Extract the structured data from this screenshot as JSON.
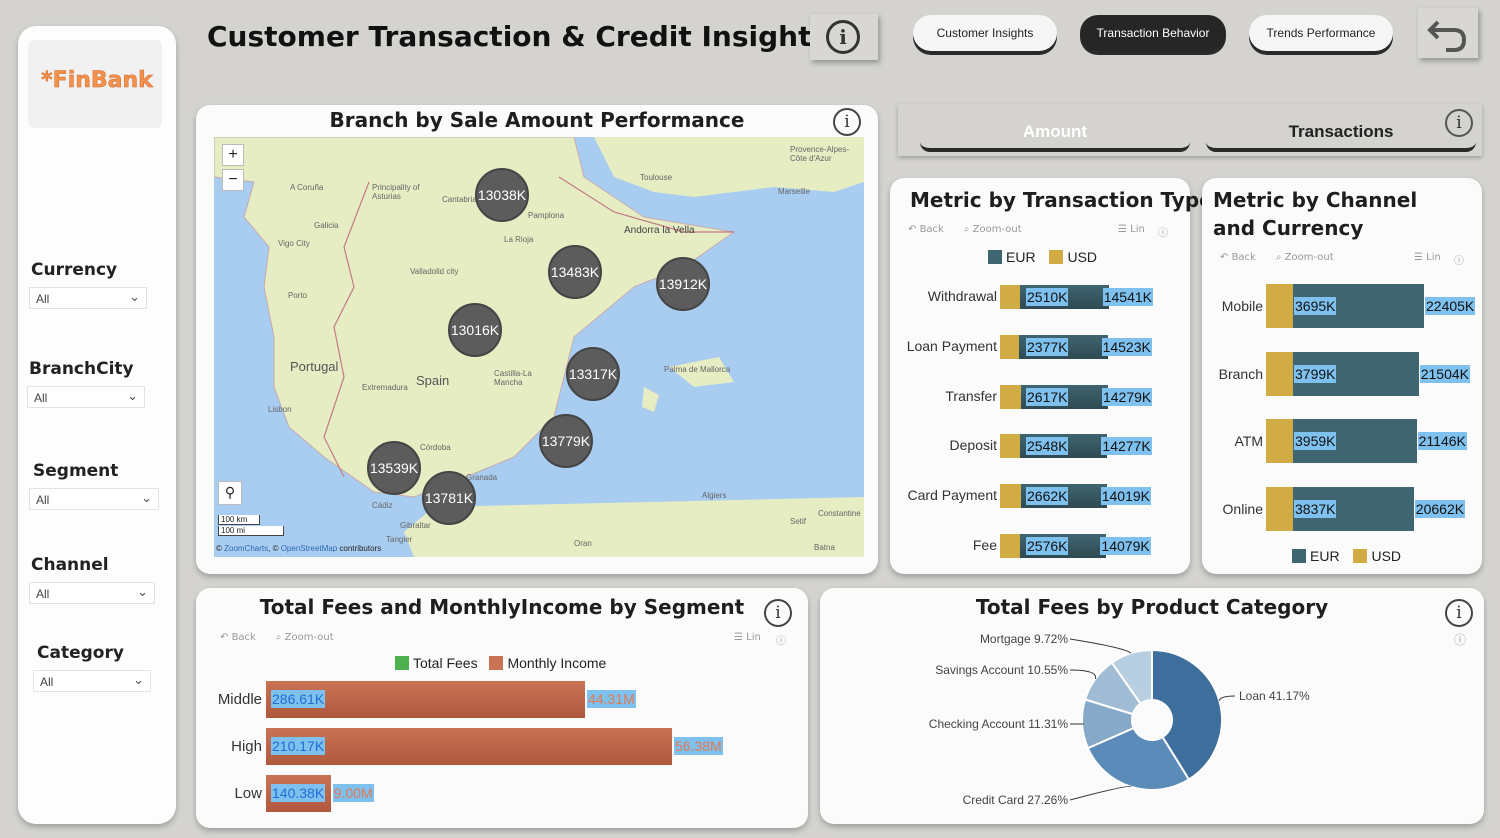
{
  "header": {
    "title": "Customer Transaction & Credit Insights",
    "nav": [
      "Customer Insights",
      "Transaction Behavior",
      "Trends Performance"
    ]
  },
  "sidebar": {
    "logo": "*FinBank",
    "filters": [
      {
        "label": "Currency",
        "value": "All"
      },
      {
        "label": "BranchCity",
        "value": "All"
      },
      {
        "label": "Segment",
        "value": "All"
      },
      {
        "label": "Channel",
        "value": "All"
      },
      {
        "label": "Category",
        "value": "All"
      }
    ]
  },
  "toolbar": {
    "back": "Back",
    "zoom_out": "Zoom-out",
    "lin": "Lin"
  },
  "map_card": {
    "title": "Branch by Sale Amount Performance",
    "zoom_in": "+",
    "zoom_out": "−",
    "scale_km": "100 km",
    "scale_mi": "100 mi",
    "attribution_prefix": "© ",
    "attribution_zc": "ZoomCharts",
    "attribution_mid": ", © ",
    "attribution_osm": "OpenStreetMap",
    "attribution_suffix": " contributors",
    "places": [
      "Provence-Alpes-Côte d'Azur",
      "Toulouse",
      "Marseille",
      "A Coruña",
      "Principality of Asturias",
      "Cantabria",
      "Pamplona",
      "La Rioja",
      "Andorra la Vella",
      "Galicia",
      "Vigo City",
      "Valladolid city",
      "Porto",
      "Portugal",
      "Spain",
      "Castilla-La Mancha",
      "Extremadura",
      "Lisbon",
      "Palma de Mallorca",
      "Córdoba",
      "Granada",
      "Algiers",
      "Cádiz",
      "Gibraltar",
      "Tangier",
      "Oran",
      "Setif",
      "Constantine",
      "Batna"
    ],
    "clusters": [
      "13038K",
      "13483K",
      "13912K",
      "13016K",
      "13317K",
      "13779K",
      "13539K",
      "13781K"
    ]
  },
  "toggle": {
    "amount": "Amount",
    "transactions": "Transactions"
  },
  "colors": {
    "eur": "#3f6570",
    "usd": "#d1ab44",
    "fees": "#4caf50",
    "income": "#c87356",
    "label_bg": "#7ec0ee",
    "pie": [
      "#3e6e9c",
      "#5b8bb9",
      "#86a9c9",
      "#a1bdd6",
      "#b8cfe2"
    ]
  },
  "chart_data": [
    {
      "type": "bar",
      "title": "Metric by Transaction Type",
      "categories": [
        "Withdrawal",
        "Loan Payment",
        "Transfer",
        "Deposit",
        "Card Payment",
        "Fee"
      ],
      "series": [
        {
          "name": "EUR",
          "values": [
            14541,
            14523,
            14279,
            14277,
            14019,
            14079
          ],
          "labels": [
            "14541K",
            "14523K",
            "14279K",
            "14277K",
            "14019K",
            "14079K"
          ]
        },
        {
          "name": "USD",
          "values": [
            2510,
            2377,
            2617,
            2548,
            2662,
            2576
          ],
          "labels": [
            "2510K",
            "2377K",
            "2617K",
            "2548K",
            "2662K",
            "2576K"
          ]
        }
      ]
    },
    {
      "type": "bar",
      "title": "Metric by Channel and Currency",
      "categories": [
        "Mobile",
        "Branch",
        "ATM",
        "Online"
      ],
      "series": [
        {
          "name": "EUR",
          "values": [
            22405,
            21504,
            21146,
            20662
          ],
          "labels": [
            "22405K",
            "21504K",
            "21146K",
            "20662K"
          ]
        },
        {
          "name": "USD",
          "values": [
            3695,
            3799,
            3959,
            3837
          ],
          "labels": [
            "3695K",
            "3799K",
            "3959K",
            "3837K"
          ]
        }
      ]
    },
    {
      "type": "bar",
      "title": "Total Fees and MonthlyIncome by Segment",
      "categories": [
        "Middle",
        "High",
        "Low"
      ],
      "series": [
        {
          "name": "Total Fees",
          "values": [
            286.61,
            210.17,
            140.38
          ],
          "labels": [
            "286.61K",
            "210.17K",
            "140.38K"
          ]
        },
        {
          "name": "Monthly Income",
          "values": [
            44.31,
            56.38,
            9.0
          ],
          "labels": [
            "44.31M",
            "56.38M",
            "9.00M"
          ]
        }
      ]
    },
    {
      "type": "pie",
      "title": "Total Fees by Product Category",
      "slices": [
        {
          "name": "Loan",
          "value": 41.17,
          "label": "Loan 41.17%"
        },
        {
          "name": "Credit Card",
          "value": 27.26,
          "label": "Credit Card 27.26%"
        },
        {
          "name": "Checking Account",
          "value": 11.31,
          "label": "Checking Account 11.31%"
        },
        {
          "name": "Savings Account",
          "value": 10.55,
          "label": "Savings Account 10.55%"
        },
        {
          "name": "Mortgage",
          "value": 9.72,
          "label": "Mortgage 9.72%"
        }
      ]
    }
  ]
}
